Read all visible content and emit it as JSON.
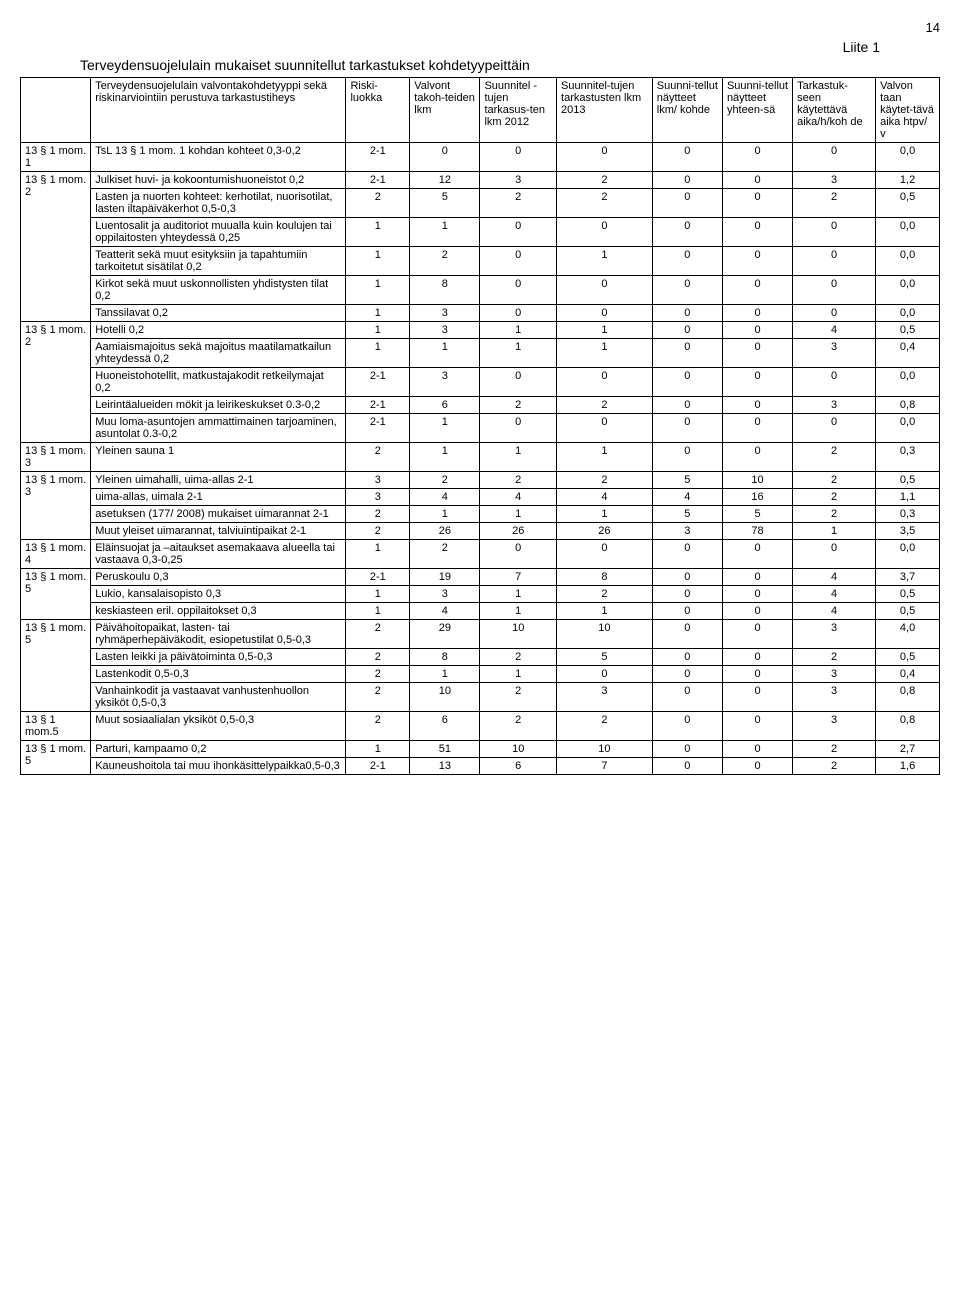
{
  "page_number": "14",
  "liite": "Liite 1",
  "title": "Terveydensuojelulain mukaiset suunnitellut tarkastukset kohdetyypeittäin",
  "headers": [
    "",
    "Terveydensuojelulain valvontakohdetyyppi sekä riskinarviointiin perustuva tarkastustiheys",
    "Riski-luokka",
    "Valvont takoh-teiden lkm",
    "Suunnitel -tujen tarkasus-ten lkm 2012",
    "Suunnitel-tujen tarkastusten lkm 2013",
    "Suunni-tellut näytteet lkm/ kohde",
    "Suunni-tellut näytteet yhteen-sä",
    "Tarkastuk-seen käytettävä aika/h/koh de",
    "Valvon taan käytet-tävä aika htpv/ v"
  ],
  "rows": [
    {
      "sec": "13 § 1 mom. 1",
      "desc": "TsL 13 § 1 mom. 1 kohdan kohteet      0,3-0,2",
      "v": [
        "2-1",
        "0",
        "0",
        "0",
        "0",
        "0",
        "0",
        "0,0"
      ]
    },
    {
      "sec": "13 § 1 mom. 2",
      "desc": "Julkiset huvi- ja kokoontumishuoneistot  0,2",
      "v": [
        "2-1",
        "12",
        "3",
        "2",
        "0",
        "0",
        "3",
        "1,2"
      ]
    },
    {
      "sec": "",
      "desc": "Lasten ja nuorten kohteet: kerhotilat, nuorisotilat, lasten iltapäiväkerhot 0,5-0,3",
      "v": [
        "2",
        "5",
        "2",
        "2",
        "0",
        "0",
        "2",
        "0,5"
      ]
    },
    {
      "sec": "",
      "desc": "Luentosalit ja auditoriot muualla kuin koulujen tai oppilaitosten yhteydessä 0,25",
      "v": [
        "1",
        "1",
        "0",
        "0",
        "0",
        "0",
        "0",
        "0,0"
      ]
    },
    {
      "sec": "",
      "desc": "Teatterit sekä muut esityksiin ja tapahtumiin tarkoitetut sisätilat 0,2",
      "v": [
        "1",
        "2",
        "0",
        "1",
        "0",
        "0",
        "0",
        "0,0"
      ]
    },
    {
      "sec": "",
      "desc": "Kirkot sekä  muut uskonnollisten yhdistysten tilat 0,2",
      "v": [
        "1",
        "8",
        "0",
        "0",
        "0",
        "0",
        "0",
        "0,0"
      ]
    },
    {
      "sec": "",
      "desc": "Tanssilavat 0,2",
      "v": [
        "1",
        "3",
        "0",
        "0",
        "0",
        "0",
        "0",
        "0,0"
      ]
    },
    {
      "sec": "13 § 1 mom. 2",
      "desc": "Hotelli 0,2",
      "v": [
        "1",
        "3",
        "1",
        "1",
        "0",
        "0",
        "4",
        "0,5"
      ]
    },
    {
      "sec": "",
      "desc": "Aamiaismajoitus sekä majoitus maatilamatkailun yhteydessä 0,2",
      "v": [
        "1",
        "1",
        "1",
        "1",
        "0",
        "0",
        "3",
        "0,4"
      ]
    },
    {
      "sec": "",
      "desc": "Huoneistohotellit, matkustajakodit retkeilymajat 0,2",
      "v": [
        "2-1",
        "3",
        "0",
        "0",
        "0",
        "0",
        "0",
        "0,0"
      ]
    },
    {
      "sec": "",
      "desc": "Leirintäalueiden mökit ja leirikeskukset  0.3-0,2",
      "v": [
        "2-1",
        "6",
        "2",
        "2",
        "0",
        "0",
        "3",
        "0,8"
      ]
    },
    {
      "sec": "",
      "desc": "Muu loma-asuntojen ammattimainen tarjoaminen, asuntolat 0.3-0,2",
      "v": [
        "2-1",
        "1",
        "0",
        "0",
        "0",
        "0",
        "0",
        "0,0"
      ]
    },
    {
      "sec": "13 § 1 mom. 3",
      "desc": "Yleinen sauna 1",
      "v": [
        "2",
        "1",
        "1",
        "1",
        "0",
        "0",
        "2",
        "0,3"
      ]
    },
    {
      "sec": "13 § 1 mom. 3",
      "desc": "Yleinen uimahalli, uima-allas  2-1",
      "v": [
        "3",
        "2",
        "2",
        "2",
        "5",
        "10",
        "2",
        "0,5"
      ]
    },
    {
      "sec": "",
      "desc": "uima-allas, uimala 2-1",
      "v": [
        "3",
        "4",
        "4",
        "4",
        "4",
        "16",
        "2",
        "1,1"
      ]
    },
    {
      "sec": "",
      "desc": "asetuksen (177/ 2008) mukaiset uimarannat 2-1",
      "v": [
        "2",
        "1",
        "1",
        "1",
        "5",
        "5",
        "2",
        "0,3"
      ]
    },
    {
      "sec": "",
      "desc": "Muut yleiset uimarannat, talviuintipaikat 2-1",
      "v": [
        "2",
        "26",
        "26",
        "26",
        "3",
        "78",
        "1",
        "3,5"
      ]
    },
    {
      "sec": "13 § 1 mom. 4",
      "desc": "Eläinsuojat ja –aitaukset asemakaava alueella tai vastaava 0,3-0,25",
      "v": [
        "1",
        "2",
        "0",
        "0",
        "0",
        "0",
        "0",
        "0,0"
      ]
    },
    {
      "sec": "13 § 1 mom. 5",
      "desc": "Peruskoulu 0,3",
      "v": [
        "2-1",
        "19",
        "7",
        "8",
        "0",
        "0",
        "4",
        "3,7"
      ]
    },
    {
      "sec": "",
      "desc": "Lukio, kansalaisopisto 0,3",
      "v": [
        "1",
        "3",
        "1",
        "2",
        "0",
        "0",
        "4",
        "0,5"
      ]
    },
    {
      "sec": "",
      "desc": "keskiasteen eril. oppilaitokset 0,3",
      "v": [
        "1",
        "4",
        "1",
        "1",
        "0",
        "0",
        "4",
        "0,5"
      ]
    },
    {
      "sec": "13 § 1 mom. 5",
      "desc": "Päivähoitopaikat, lasten- tai ryhmäperhepäiväkodit, esiopetustilat 0,5-0,3",
      "v": [
        "2",
        "29",
        "10",
        "10",
        "0",
        "0",
        "3",
        "4,0"
      ]
    },
    {
      "sec": "",
      "desc": "Lasten leikki ja päivätoiminta 0,5-0,3",
      "v": [
        "2",
        "8",
        "2",
        "5",
        "0",
        "0",
        "2",
        "0,5"
      ]
    },
    {
      "sec": "",
      "desc": "Lastenkodit 0,5-0,3",
      "v": [
        "2",
        "1",
        "1",
        "0",
        "0",
        "0",
        "3",
        "0,4"
      ]
    },
    {
      "sec": "",
      "desc": "Vanhainkodit ja vastaavat vanhustenhuollon yksiköt 0,5-0,3",
      "v": [
        "2",
        "10",
        "2",
        "3",
        "0",
        "0",
        "3",
        "0,8"
      ]
    },
    {
      "sec": "13 § 1 mom.5",
      "desc": "Muut sosiaalialan yksiköt 0,5-0,3",
      "v": [
        "2",
        "6",
        "2",
        "2",
        "0",
        "0",
        "3",
        "0,8"
      ]
    },
    {
      "sec": "13 § 1 mom. 5",
      "desc": "Parturi, kampaamo 0,2",
      "v": [
        "1",
        "51",
        "10",
        "10",
        "0",
        "0",
        "2",
        "2,7"
      ]
    },
    {
      "sec": "",
      "desc": "Kauneushoitola tai muu ihonkäsittelypaikka0,5-0,3",
      "v": [
        "2-1",
        "13",
        "6",
        "7",
        "0",
        "0",
        "2",
        "1,6"
      ]
    }
  ],
  "groups": [
    {
      "start": 0,
      "span": 1
    },
    {
      "start": 1,
      "span": 6
    },
    {
      "start": 7,
      "span": 5
    },
    {
      "start": 12,
      "span": 1
    },
    {
      "start": 13,
      "span": 4
    },
    {
      "start": 17,
      "span": 1
    },
    {
      "start": 18,
      "span": 3
    },
    {
      "start": 21,
      "span": 4
    },
    {
      "start": 25,
      "span": 1
    },
    {
      "start": 26,
      "span": 2
    }
  ]
}
